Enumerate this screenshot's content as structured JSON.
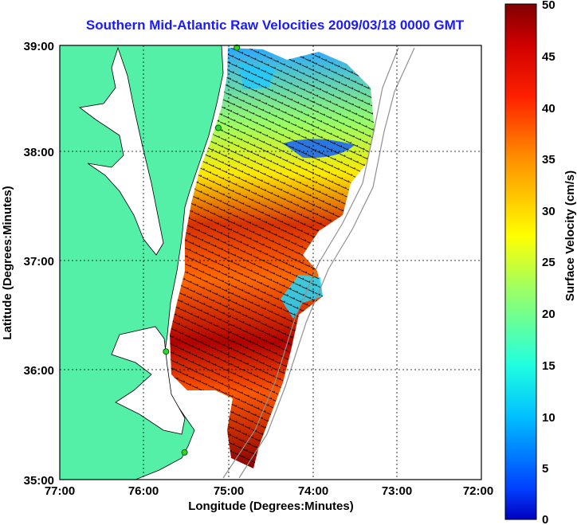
{
  "title": "Southern Mid-Atlantic Raw Velocities 2009/03/18 0000 GMT",
  "x_axis": {
    "label": "Longitude (Degrees:Minutes)",
    "ticks": [
      "77:00",
      "76:00",
      "75:00",
      "74:00",
      "73:00",
      "72:00"
    ]
  },
  "y_axis": {
    "label": "Latitude (Degrees:Minutes)",
    "ticks": [
      "39:00",
      "38:00",
      "37:00",
      "36:00",
      "35:00"
    ]
  },
  "colorbar": {
    "label": "Surface Velocity (cm/s)",
    "ticks": [
      "50",
      "45",
      "40",
      "35",
      "30",
      "25",
      "20",
      "15",
      "10",
      "5",
      "0"
    ],
    "min": 0,
    "max": 50
  },
  "colors": {
    "land": "#55f0a8",
    "coast_line": "#000000",
    "title_color": "#1a1aff",
    "grid": "#000000",
    "station": "#2ed62e"
  },
  "map_extent": {
    "lon_range": [
      -77,
      -72
    ],
    "lat_range": [
      35,
      39
    ]
  },
  "stations": [
    {
      "lat": 38.98,
      "lon": -74.9
    },
    {
      "lat": 38.24,
      "lon": -75.12
    },
    {
      "lat": 36.18,
      "lon": -75.74
    },
    {
      "lat": 35.25,
      "lon": -75.52
    }
  ]
}
